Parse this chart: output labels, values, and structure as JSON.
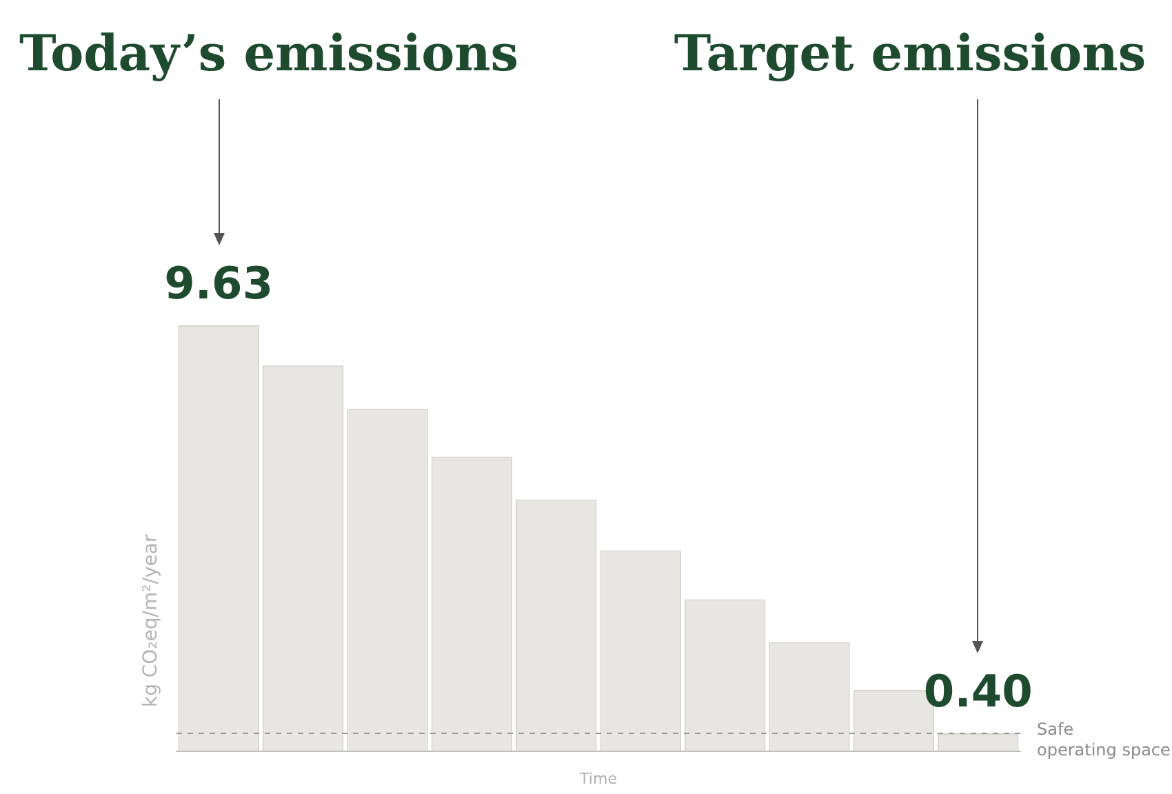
{
  "chart_data": {
    "type": "bar",
    "xlabel": "Time",
    "ylabel": "kg CO₂eq/m²/year",
    "annotations": [
      "Today’s emissions",
      "Target emissions"
    ],
    "categories": [
      null,
      null,
      null,
      null,
      null,
      null,
      null,
      null,
      null,
      null
    ],
    "values": [
      9.63,
      8.72,
      7.74,
      6.66,
      5.69,
      4.54,
      3.43,
      2.46,
      1.38,
      0.4
    ],
    "value_labels": [
      "9.63",
      null,
      null,
      null,
      null,
      null,
      null,
      null,
      null,
      "0.40"
    ],
    "color": "#e8e6e3",
    "ref_lines": [
      {
        "axis": "y",
        "value": 0.4,
        "label": "Safe operating space",
        "color": "#999999",
        "line_style": "dashed"
      }
    ]
  }
}
